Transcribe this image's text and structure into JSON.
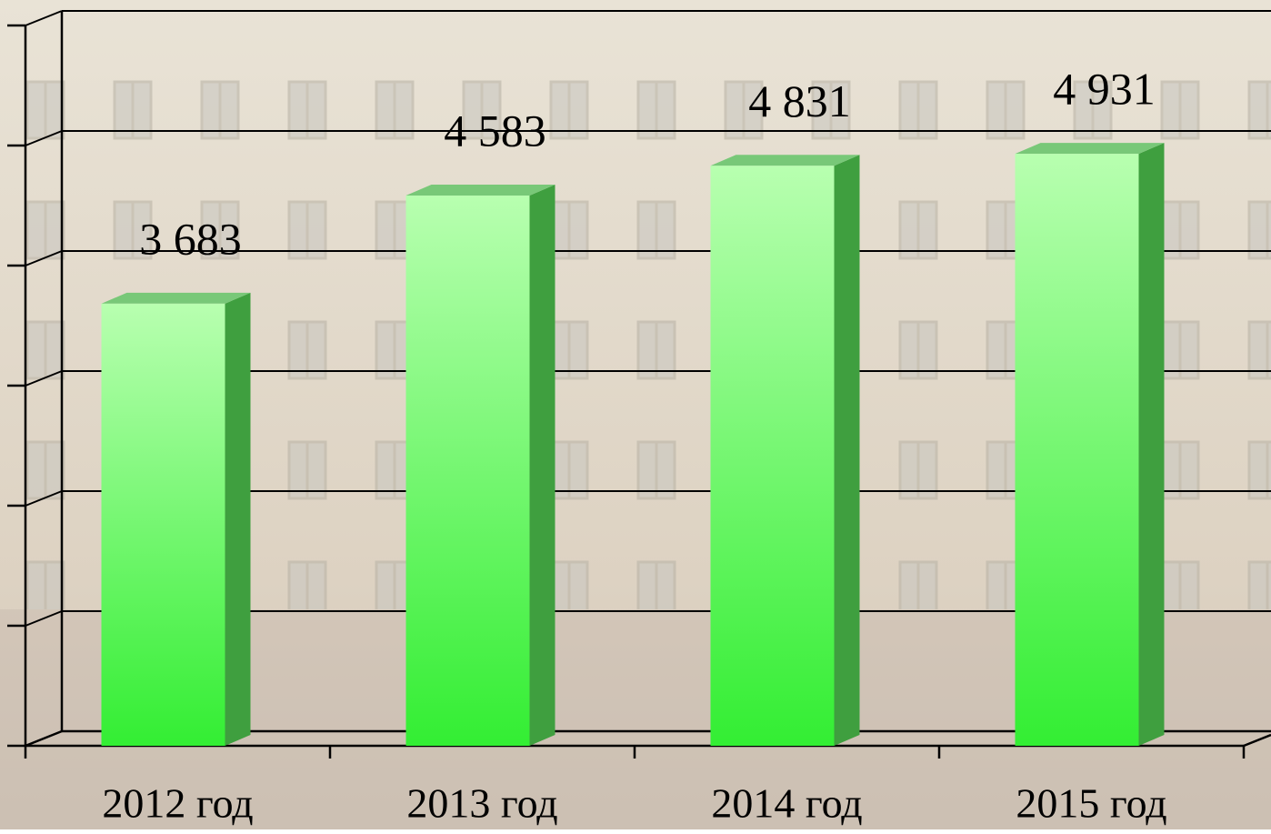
{
  "chart_data": {
    "type": "bar3d",
    "categories": [
      "2012 год",
      "2013 год",
      "2014 год",
      "2015 год"
    ],
    "values": [
      3683,
      4583,
      4831,
      4931
    ],
    "value_labels": [
      "3 683",
      "4 583",
      "4 831",
      "4 931"
    ],
    "color": "#33ee33",
    "ylim": [
      0,
      6000
    ],
    "yticks": [
      0,
      1000,
      2000,
      3000,
      4000,
      5000,
      6000
    ],
    "grid": true
  }
}
